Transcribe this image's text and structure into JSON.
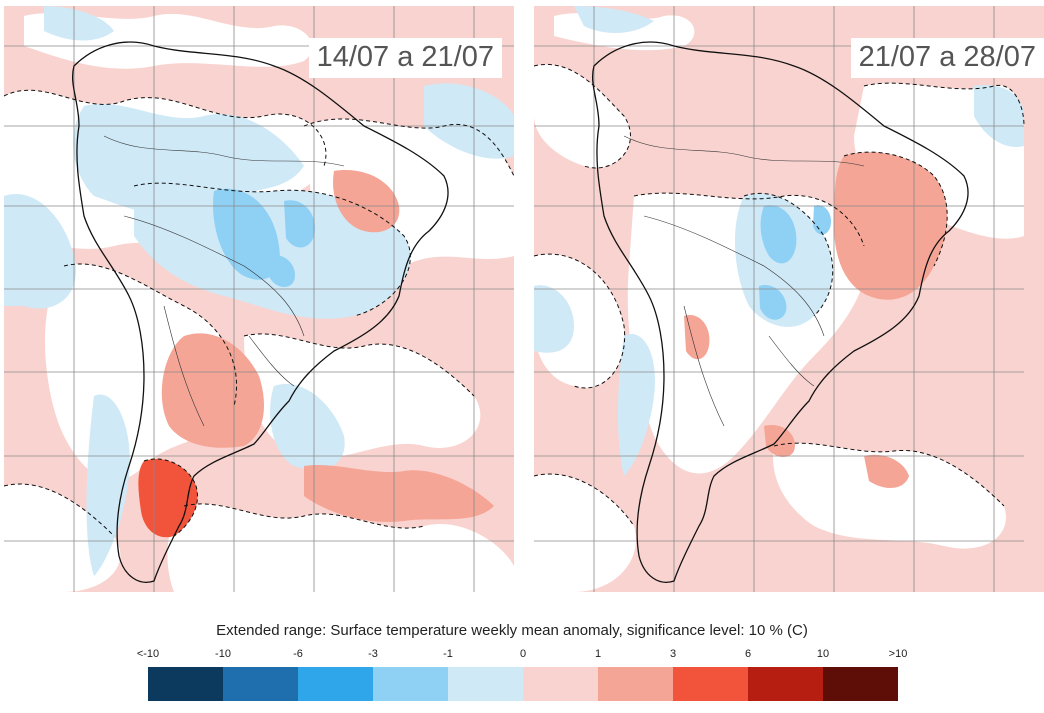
{
  "panels": [
    {
      "label": "14/07 a 21/07"
    },
    {
      "label": "21/07 a 28/07"
    }
  ],
  "legend": {
    "title": "Extended range: Surface temperature weekly mean anomaly, significance level: 10 % (C)",
    "ticks": [
      "<-10",
      "-10",
      "-6",
      "-3",
      "-1",
      "0",
      "1",
      "3",
      "6",
      "10",
      ">10"
    ],
    "colors": [
      "#0b3a5e",
      "#1f6fae",
      "#2fa6ea",
      "#8fd0f5",
      "#cfe9f7",
      "#f9d3cf",
      "#f5a596",
      "#f2533b",
      "#b61e12",
      "#5e0d07"
    ]
  },
  "map_colors": {
    "land_outline": "#111111",
    "grid": "#8a8a8a",
    "warm_weak": "#f9d3cf",
    "warm_mid": "#f5a596",
    "warm_strong": "#f2533b",
    "neutral": "#ffffff",
    "cool_weak": "#cfe9f7",
    "cool_mid": "#8fd0f5"
  }
}
